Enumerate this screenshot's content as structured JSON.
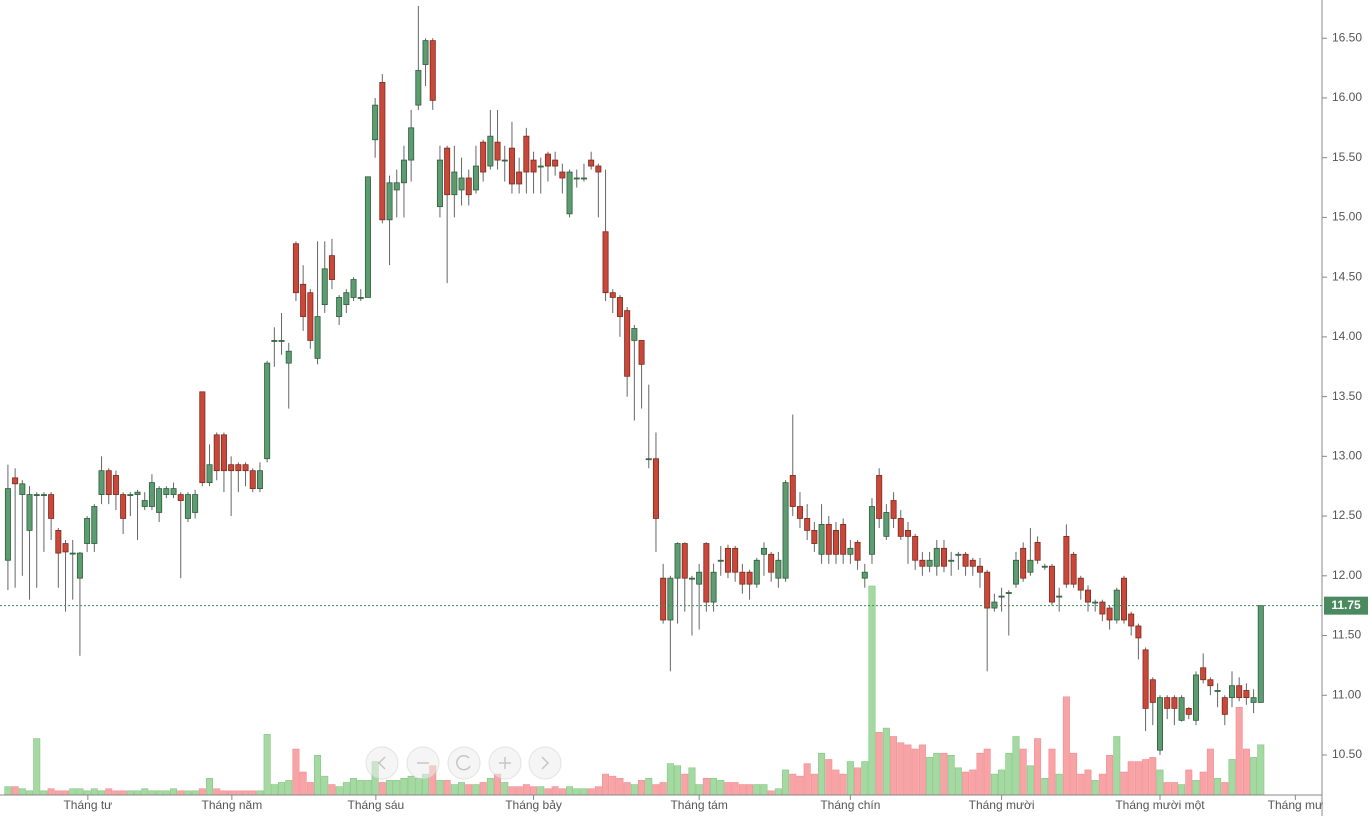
{
  "chart_data": {
    "type": "candlestick",
    "open": [
      12.13,
      12.82,
      12.68,
      12.38,
      12.68,
      12.68,
      12.68,
      12.38,
      12.27,
      12.19,
      11.98,
      12.27,
      12.27,
      12.68,
      12.88,
      12.84,
      12.68,
      12.68,
      12.68,
      12.58,
      12.58,
      12.53,
      12.68,
      12.68,
      12.68,
      12.48,
      12.53,
      13.54,
      12.78,
      13.18,
      13.18,
      12.93,
      12.93,
      12.93,
      12.88,
      12.73,
      12.98,
      13.97,
      13.97,
      13.78,
      14.78,
      14.44,
      14.37,
      13.82,
      14.27,
      14.68,
      14.17,
      14.27,
      14.33,
      14.33,
      14.33,
      15.65,
      16.13,
      14.98,
      15.23,
      15.29,
      15.48,
      15.94,
      16.28,
      16.48,
      15.09,
      15.58,
      15.19,
      15.23,
      15.33,
      15.23,
      15.63,
      15.43,
      15.63,
      15.48,
      15.58,
      15.38,
      15.68,
      15.48,
      15.43,
      15.53,
      15.48,
      15.38,
      15.03,
      15.33,
      15.33,
      15.48,
      15.43,
      14.88,
      14.37,
      14.33,
      14.22,
      13.97,
      13.97,
      12.98,
      12.98,
      11.98,
      11.63,
      11.98,
      12.27,
      11.98,
      11.93,
      12.27,
      11.78,
      12.13,
      12.23,
      12.23,
      12.03,
      12.03,
      11.93,
      12.18,
      12.18,
      11.98,
      11.98,
      12.84,
      12.58,
      12.48,
      12.38,
      12.18,
      12.43,
      12.38,
      12.43,
      12.18,
      12.28,
      11.98,
      12.18,
      12.84,
      12.33,
      12.63,
      12.48,
      12.38,
      12.33,
      12.13,
      12.08,
      12.08,
      12.23,
      12.13,
      12.18,
      12.18,
      12.13,
      12.08,
      12.03,
      11.73,
      11.83,
      11.86,
      11.93,
      12.23,
      12.03,
      12.28,
      12.08,
      12.08,
      11.83,
      12.33,
      12.18,
      11.98,
      11.88,
      11.78,
      11.78,
      11.73,
      11.63,
      11.98,
      11.68,
      11.58,
      11.38,
      11.13,
      10.54,
      10.98,
      10.98,
      10.79,
      10.89,
      10.79,
      11.23,
      11.13,
      11.04,
      10.98,
      10.98,
      11.08,
      11.04,
      10.94,
      10.94
    ],
    "high": [
      12.93,
      12.9,
      12.8,
      12.75,
      12.7,
      12.7,
      12.7,
      12.4,
      12.3,
      12.3,
      12.2,
      12.5,
      12.6,
      13.0,
      12.9,
      12.88,
      12.7,
      12.7,
      12.72,
      12.7,
      12.85,
      12.75,
      12.75,
      12.78,
      12.7,
      12.7,
      12.72,
      13.54,
      13.1,
      13.2,
      13.2,
      13.0,
      12.95,
      12.95,
      12.9,
      12.95,
      13.8,
      14.08,
      14.2,
      13.95,
      14.8,
      14.6,
      14.4,
      14.8,
      14.8,
      14.82,
      14.35,
      14.4,
      14.5,
      14.4,
      15.34,
      16.0,
      16.2,
      15.35,
      15.4,
      15.6,
      15.9,
      16.77,
      16.5,
      16.5,
      15.6,
      15.6,
      15.6,
      15.5,
      15.4,
      15.6,
      15.65,
      15.9,
      15.9,
      15.6,
      15.8,
      15.5,
      15.75,
      15.55,
      15.5,
      15.55,
      15.55,
      15.45,
      15.4,
      15.4,
      15.45,
      15.55,
      15.45,
      15.4,
      14.4,
      14.35,
      14.25,
      14.1,
      13.97,
      13.6,
      13.2,
      12.1,
      12.0,
      12.28,
      12.28,
      12.0,
      12.1,
      12.28,
      12.1,
      12.25,
      12.26,
      12.25,
      12.1,
      12.05,
      12.15,
      12.28,
      12.2,
      12.2,
      12.8,
      13.35,
      12.7,
      12.6,
      12.45,
      12.6,
      12.5,
      12.45,
      12.48,
      12.3,
      12.3,
      12.1,
      12.65,
      12.9,
      12.6,
      12.7,
      12.55,
      12.45,
      12.35,
      12.2,
      12.2,
      12.3,
      12.3,
      12.2,
      12.2,
      12.2,
      12.15,
      12.15,
      12.05,
      11.85,
      11.9,
      11.88,
      12.2,
      12.28,
      12.4,
      12.33,
      12.1,
      12.1,
      11.9,
      12.43,
      12.2,
      12.0,
      11.92,
      11.8,
      11.8,
      11.75,
      11.9,
      12.0,
      11.7,
      11.6,
      11.4,
      11.15,
      11.0,
      11.0,
      11.0,
      11.0,
      10.9,
      11.2,
      11.35,
      11.15,
      11.1,
      11.0,
      11.2,
      11.15,
      11.1,
      11.05,
      11.75
    ],
    "low": [
      11.88,
      11.9,
      12.0,
      11.8,
      11.9,
      12.2,
      12.3,
      11.9,
      11.7,
      11.8,
      11.33,
      12.2,
      12.2,
      12.6,
      12.6,
      12.55,
      12.35,
      12.5,
      12.3,
      12.55,
      12.55,
      12.45,
      12.65,
      12.65,
      11.98,
      12.45,
      12.48,
      12.75,
      12.75,
      12.8,
      12.7,
      12.5,
      12.7,
      12.75,
      12.7,
      12.7,
      12.95,
      13.75,
      13.85,
      13.4,
      14.3,
      14.05,
      13.9,
      13.77,
      14.2,
      14.4,
      14.1,
      14.2,
      14.3,
      14.3,
      14.33,
      15.5,
      14.95,
      14.6,
      15.0,
      15.0,
      15.3,
      15.9,
      16.1,
      15.9,
      15.0,
      14.45,
      15.0,
      15.1,
      15.1,
      15.2,
      15.3,
      15.4,
      15.4,
      15.3,
      15.2,
      15.2,
      15.2,
      15.2,
      15.2,
      15.3,
      15.35,
      15.2,
      15.0,
      15.25,
      15.3,
      15.4,
      15.0,
      14.3,
      14.2,
      14.0,
      13.5,
      13.3,
      13.4,
      12.9,
      12.2,
      11.6,
      11.2,
      11.6,
      11.7,
      11.5,
      11.55,
      11.7,
      11.7,
      12.0,
      11.98,
      11.95,
      11.85,
      11.8,
      11.9,
      12.0,
      11.95,
      11.9,
      11.95,
      12.5,
      12.4,
      12.3,
      12.2,
      12.1,
      12.1,
      12.1,
      12.1,
      12.1,
      12.05,
      11.9,
      12.1,
      12.4,
      12.3,
      12.4,
      12.3,
      12.1,
      12.05,
      12.0,
      12.03,
      12.0,
      12.03,
      12.0,
      12.05,
      12.0,
      12.0,
      11.9,
      11.2,
      11.7,
      11.7,
      11.5,
      11.9,
      11.95,
      12.0,
      12.1,
      12.05,
      11.75,
      11.7,
      11.9,
      11.9,
      11.8,
      11.7,
      11.7,
      11.62,
      11.55,
      11.6,
      11.6,
      11.5,
      11.3,
      10.7,
      10.75,
      10.5,
      10.8,
      10.75,
      10.78,
      10.8,
      10.75,
      11.1,
      11.0,
      10.9,
      10.75,
      10.9,
      10.95,
      10.92,
      10.85,
      10.94
    ],
    "close": [
      12.73,
      12.77,
      12.77,
      12.68,
      12.68,
      12.68,
      12.48,
      12.19,
      12.2,
      12.19,
      12.19,
      12.48,
      12.58,
      12.88,
      12.68,
      12.68,
      12.48,
      12.68,
      12.7,
      12.63,
      12.78,
      12.73,
      12.73,
      12.73,
      12.63,
      12.68,
      12.68,
      12.78,
      12.93,
      12.88,
      12.88,
      12.88,
      12.88,
      12.88,
      12.73,
      12.88,
      13.78,
      13.97,
      13.97,
      13.88,
      14.37,
      14.17,
      13.97,
      14.17,
      14.57,
      14.48,
      14.33,
      14.37,
      14.48,
      14.33,
      15.34,
      15.94,
      14.98,
      15.29,
      15.29,
      15.48,
      15.75,
      16.23,
      16.48,
      15.98,
      15.48,
      15.19,
      15.38,
      15.33,
      15.19,
      15.43,
      15.38,
      15.68,
      15.48,
      15.48,
      15.28,
      15.28,
      15.38,
      15.38,
      15.43,
      15.43,
      15.43,
      15.33,
      15.38,
      15.33,
      15.33,
      15.43,
      15.38,
      14.37,
      14.33,
      14.17,
      13.67,
      14.07,
      13.77,
      12.98,
      12.48,
      11.63,
      11.98,
      12.27,
      11.98,
      11.98,
      12.03,
      11.78,
      12.03,
      12.13,
      12.03,
      12.03,
      11.93,
      11.93,
      12.13,
      12.23,
      12.03,
      12.13,
      12.78,
      12.58,
      12.48,
      12.38,
      12.27,
      12.43,
      12.18,
      12.18,
      12.18,
      12.23,
      12.13,
      12.03,
      12.58,
      12.48,
      12.53,
      12.48,
      12.33,
      12.33,
      12.13,
      12.08,
      12.13,
      12.23,
      12.08,
      12.13,
      12.18,
      12.08,
      12.08,
      12.03,
      11.73,
      11.78,
      11.83,
      11.86,
      12.13,
      11.98,
      12.13,
      12.13,
      12.08,
      11.78,
      11.83,
      11.93,
      11.93,
      11.88,
      11.78,
      11.78,
      11.68,
      11.63,
      11.88,
      11.63,
      11.58,
      11.48,
      10.89,
      10.94,
      10.98,
      10.89,
      10.89,
      10.98,
      10.84,
      11.17,
      11.13,
      11.08,
      11.04,
      10.84,
      11.08,
      10.98,
      10.98,
      10.98,
      11.75
    ],
    "volume": [
      4,
      4,
      3,
      2,
      27,
      2,
      3,
      2,
      2,
      3,
      3,
      2,
      3,
      2,
      3,
      2,
      2,
      2,
      2,
      3,
      2,
      2,
      2,
      3,
      2,
      2,
      2,
      3,
      8,
      3,
      2,
      2,
      2,
      2,
      2,
      2,
      29,
      5,
      6,
      7,
      22,
      11,
      6,
      19,
      9,
      5,
      4,
      6,
      8,
      7,
      7,
      16,
      6,
      7,
      7,
      8,
      9,
      8,
      10,
      14,
      7,
      7,
      5,
      6,
      5,
      5,
      6,
      8,
      10,
      6,
      4,
      4,
      5,
      4,
      4,
      3,
      4,
      3,
      4,
      3,
      3,
      3,
      4,
      10,
      9,
      8,
      6,
      5,
      7,
      8,
      5,
      6,
      15,
      14,
      10,
      13,
      5,
      8,
      8,
      7,
      6,
      6,
      5,
      5,
      5,
      5,
      2,
      3,
      12,
      10,
      9,
      15,
      10,
      20,
      17,
      12,
      10,
      16,
      13,
      16,
      100,
      30,
      32,
      28,
      25,
      24,
      22,
      24,
      18,
      20,
      20,
      19,
      13,
      11,
      12,
      20,
      22,
      10,
      12,
      20,
      28,
      22,
      14,
      27,
      8,
      22,
      10,
      47,
      20,
      10,
      12,
      7,
      10,
      19,
      28,
      11,
      16,
      16,
      17,
      18,
      12,
      6,
      6,
      5,
      12,
      7,
      11,
      22,
      8,
      6,
      17,
      42,
      22,
      18,
      24
    ],
    "up_color": "#5d9b70",
    "down_color": "#c9483a",
    "volume_up_color": "#a4d9a2",
    "volume_down_color": "#f8a3a6",
    "xlim": [
      -1.1,
      182.5
    ],
    "xticks": [
      {
        "value": 11.1,
        "label": "Tháng tư"
      },
      {
        "value": 31.1,
        "label": "Tháng năm"
      },
      {
        "value": 51.1,
        "label": "Tháng sáu"
      },
      {
        "value": 73,
        "label": "Tháng bảy"
      },
      {
        "value": 96,
        "label": "Tháng tám"
      },
      {
        "value": 117,
        "label": "Tháng chín"
      },
      {
        "value": 138,
        "label": "Tháng mười"
      },
      {
        "value": 160,
        "label": "Tháng mười một"
      },
      {
        "value": 178.8,
        "label": "Tháng mư"
      }
    ],
    "ylim": [
      10.165,
      16.82
    ],
    "yticks": [
      {
        "value": 10.5,
        "label": "10.50"
      },
      {
        "value": 11,
        "label": "11.00"
      },
      {
        "value": 11.5,
        "label": "11.50"
      },
      {
        "value": 12,
        "label": "12.00"
      },
      {
        "value": 12.5,
        "label": "12.50"
      },
      {
        "value": 13,
        "label": "13.00"
      },
      {
        "value": 13.5,
        "label": "13.50"
      },
      {
        "value": 14,
        "label": "14.00"
      },
      {
        "value": 14.5,
        "label": "14.50"
      },
      {
        "value": 15,
        "label": "15.00"
      },
      {
        "value": 15.5,
        "label": "15.50"
      },
      {
        "value": 16,
        "label": "16.00"
      },
      {
        "value": 16.5,
        "label": "16.50"
      }
    ],
    "volume_ylim": [
      0,
      100
    ],
    "last_price": {
      "value": 11.75,
      "label": "11.75"
    }
  }
}
